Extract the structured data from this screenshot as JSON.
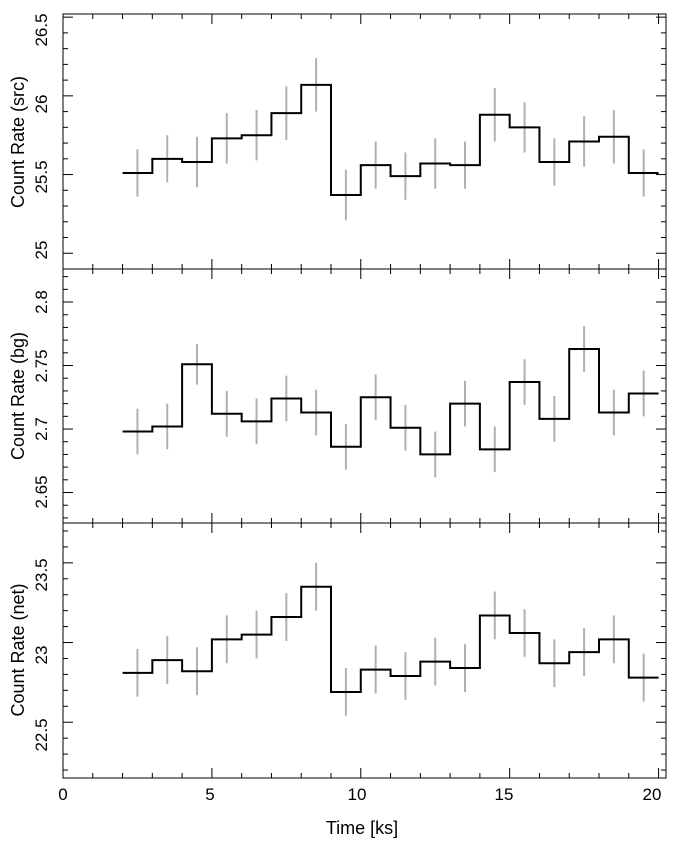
{
  "chart_data": [
    {
      "type": "line",
      "step": true,
      "ylabel": "Count Rate (src)",
      "ylim": [
        24.9,
        26.52
      ],
      "yticks": [
        "25",
        "25.5",
        "26",
        "26.5"
      ],
      "minor_y_step": 0.1,
      "xlim": [
        0,
        20.25
      ],
      "series": [
        {
          "x": [
            2.5,
            3.5,
            4.5,
            5.5,
            6.5,
            7.5,
            8.5,
            9.5,
            10.5,
            11.5,
            12.5,
            13.5,
            14.5,
            15.5,
            16.5,
            17.5,
            18.5,
            19.5
          ],
          "values": [
            25.51,
            25.6,
            25.58,
            25.73,
            25.75,
            25.89,
            26.07,
            25.37,
            25.56,
            25.49,
            25.57,
            25.56,
            25.88,
            25.8,
            25.58,
            25.71,
            25.74,
            25.51
          ],
          "error": [
            0.15,
            0.15,
            0.16,
            0.16,
            0.16,
            0.17,
            0.17,
            0.16,
            0.15,
            0.15,
            0.16,
            0.15,
            0.17,
            0.16,
            0.15,
            0.16,
            0.17,
            0.15
          ]
        }
      ]
    },
    {
      "type": "line",
      "step": true,
      "ylabel": "Count Rate (bg)",
      "ylim": [
        2.626,
        2.826
      ],
      "yticks": [
        "2.65",
        "2.7",
        "2.75",
        "2.8"
      ],
      "minor_y_step": 0.01,
      "xlim": [
        0,
        20.25
      ],
      "series": [
        {
          "x": [
            2.5,
            3.5,
            4.5,
            5.5,
            6.5,
            7.5,
            8.5,
            9.5,
            10.5,
            11.5,
            12.5,
            13.5,
            14.5,
            15.5,
            16.5,
            17.5,
            18.5,
            19.5
          ],
          "values": [
            2.698,
            2.702,
            2.751,
            2.712,
            2.706,
            2.724,
            2.713,
            2.686,
            2.725,
            2.701,
            2.68,
            2.72,
            2.684,
            2.737,
            2.708,
            2.763,
            2.713,
            2.728
          ],
          "error": [
            0.018,
            0.018,
            0.016,
            0.018,
            0.018,
            0.018,
            0.018,
            0.018,
            0.018,
            0.018,
            0.018,
            0.018,
            0.018,
            0.018,
            0.018,
            0.018,
            0.018,
            0.018
          ]
        }
      ]
    },
    {
      "type": "line",
      "step": true,
      "ylabel": "Count Rate (net)",
      "xlabel": "Time [ks]",
      "ylim": [
        22.15,
        23.75
      ],
      "yticks": [
        "22.5",
        "23",
        "23.5"
      ],
      "minor_y_step": 0.1,
      "xlim": [
        0,
        20.25
      ],
      "xticks": [
        "0",
        "5",
        "10",
        "15",
        "20"
      ],
      "minor_x_step": 1,
      "series": [
        {
          "x": [
            2.5,
            3.5,
            4.5,
            5.5,
            6.5,
            7.5,
            8.5,
            9.5,
            10.5,
            11.5,
            12.5,
            13.5,
            14.5,
            15.5,
            16.5,
            17.5,
            18.5,
            19.5
          ],
          "values": [
            22.81,
            22.89,
            22.82,
            23.02,
            23.05,
            23.16,
            23.35,
            22.69,
            22.83,
            22.79,
            22.88,
            22.84,
            23.17,
            23.06,
            22.87,
            22.94,
            23.02,
            22.78
          ],
          "error": [
            0.15,
            0.15,
            0.15,
            0.15,
            0.15,
            0.15,
            0.15,
            0.15,
            0.15,
            0.15,
            0.15,
            0.15,
            0.15,
            0.15,
            0.15,
            0.15,
            0.15,
            0.15
          ]
        }
      ]
    }
  ],
  "colors": {
    "step_line": "#000000",
    "error_bar": "#b0b0b0",
    "frame": "#000000"
  }
}
